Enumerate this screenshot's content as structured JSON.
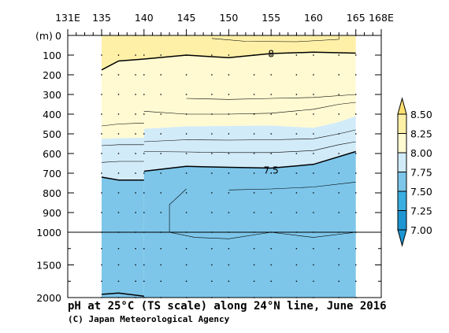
{
  "chart_data": {
    "type": "heatmap",
    "title": "pH at 25°C (TS scale) along 24°N line, June 2016",
    "credit": "(C) Japan Meteorological Agency",
    "y_unit": "(m)",
    "x_ticks": [
      "131E",
      "135",
      "140",
      "145",
      "150",
      "155",
      "160",
      "165",
      "168E"
    ],
    "x_tick_values": [
      131,
      135,
      140,
      145,
      150,
      155,
      160,
      165,
      168
    ],
    "y_ticks_upper": [
      0,
      100,
      200,
      300,
      400,
      500,
      600,
      700,
      800,
      900,
      1000
    ],
    "y_ticks_lower": [
      1500,
      2000
    ],
    "x_range": [
      131,
      168
    ],
    "y_range_upper": [
      0,
      1000
    ],
    "y_range_lower": [
      1000,
      2000
    ],
    "sample_longitudes": [
      135,
      137,
      139,
      140,
      142,
      145,
      148,
      150,
      153,
      155,
      158,
      160,
      163,
      165
    ],
    "colorbar": {
      "levels": [
        "8.50",
        "8.25",
        "8.00",
        "7.75",
        "7.50",
        "7.25",
        "7.00"
      ],
      "colors": [
        "#ffe070",
        "#fff0a8",
        "#fffad2",
        "#d2ebf8",
        "#7dc6ea",
        "#3aaee0",
        "#1e96d2"
      ]
    },
    "bands": [
      {
        "range": "8.00-8.25",
        "color": "#fff0a8"
      },
      {
        "range": "7.75-8.00",
        "color": "#fffad2"
      },
      {
        "range": "7.50-7.75",
        "color": "#d2ebf8"
      },
      {
        "range": "7.25-7.50",
        "color": "#7dc6ea"
      }
    ],
    "contour_labels": [
      {
        "text": "8",
        "lon": 155,
        "depth": 90
      },
      {
        "text": "7.5",
        "lon": 155,
        "depth": 682
      }
    ],
    "contour_8": [
      [
        135,
        175
      ],
      [
        137,
        130
      ],
      [
        140,
        120
      ],
      [
        145,
        100
      ],
      [
        150,
        113
      ],
      [
        155,
        92
      ],
      [
        160,
        85
      ],
      [
        165,
        90
      ]
    ],
    "contour_7_5": [
      [
        135,
        720
      ],
      [
        137,
        735
      ],
      [
        140,
        735
      ],
      [
        140,
        690
      ],
      [
        145,
        665
      ],
      [
        150,
        670
      ],
      [
        155,
        674
      ],
      [
        160,
        655
      ],
      [
        165,
        590
      ]
    ]
  },
  "colors": {
    "missing": "#ffffff",
    "frame": "#000000"
  }
}
